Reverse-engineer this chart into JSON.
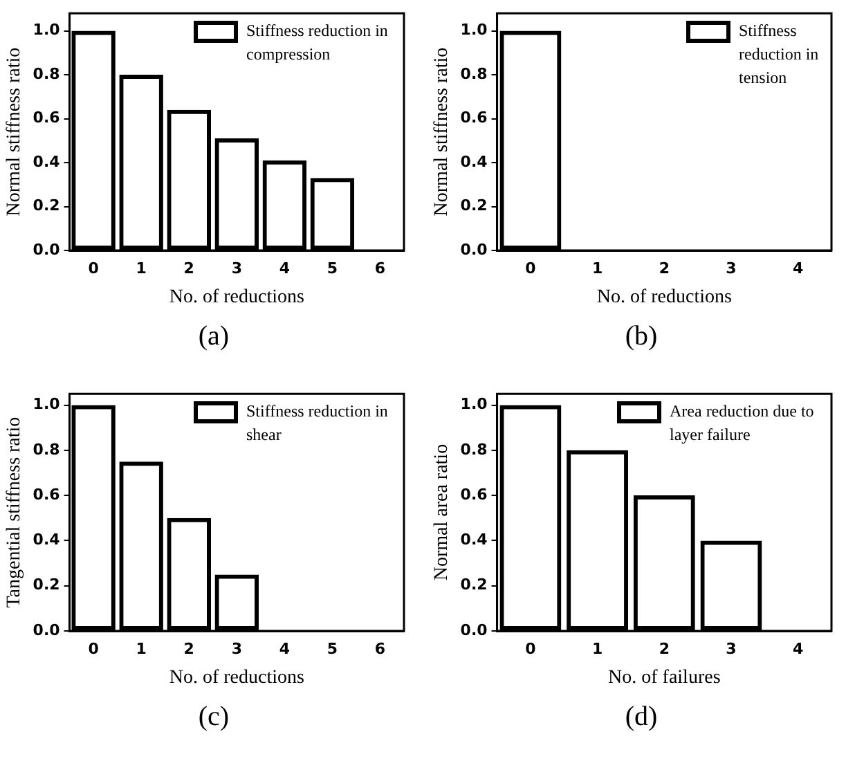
{
  "chart_data": [
    {
      "type": "bar",
      "categories": [
        "0",
        "1",
        "2",
        "3",
        "4",
        "5",
        "6"
      ],
      "series": [
        {
          "name": "Stiffness reduction in compression",
          "color": "#000000",
          "values": [
            1.0,
            0.8,
            0.64,
            0.51,
            0.41,
            0.33,
            0
          ]
        }
      ],
      "xlabel": "No. of reductions",
      "ylabel": "Normal stiffness ratio",
      "ylim": [
        0,
        1.08
      ],
      "yticks": [
        {
          "value": 0,
          "label": "0.0"
        },
        {
          "value": 0.2,
          "label": "0.2"
        },
        {
          "value": 0.4,
          "label": "0.4"
        },
        {
          "value": 0.6,
          "label": "0.6"
        },
        {
          "value": 0.8,
          "label": "0.8"
        },
        {
          "value": 1,
          "label": "1.0"
        }
      ],
      "grid": false,
      "legend": "top right",
      "annotations": [
        "(a)"
      ]
    },
    {
      "type": "bar",
      "categories": [
        "0",
        "1",
        "2",
        "3",
        "4"
      ],
      "series": [
        {
          "name": "Stiffness reduction in tension",
          "color": "#000000",
          "values": [
            1.0,
            0,
            0,
            0,
            0
          ]
        }
      ],
      "xlabel": "No. of reductions",
      "ylabel": "Normal stiffness ratio",
      "ylim": [
        0,
        1.08
      ],
      "yticks": [
        {
          "value": 0,
          "label": "0.0"
        },
        {
          "value": 0.2,
          "label": "0.2"
        },
        {
          "value": 0.4,
          "label": "0.4"
        },
        {
          "value": 0.6,
          "label": "0.6"
        },
        {
          "value": 0.8,
          "label": "0.8"
        },
        {
          "value": 1,
          "label": "1.0"
        }
      ],
      "grid": false,
      "legend": "top right",
      "annotations": [
        "(b)"
      ]
    },
    {
      "type": "bar",
      "categories": [
        "0",
        "1",
        "2",
        "3",
        "4",
        "5",
        "6"
      ],
      "series": [
        {
          "name": "Stiffness reduction in shear",
          "color": "#000000",
          "values": [
            1.0,
            0.75,
            0.5,
            0.25,
            0,
            0,
            0
          ]
        }
      ],
      "xlabel": "No. of reductions",
      "ylabel": "Tangential stiffness ratio",
      "ylim": [
        0,
        1.05
      ],
      "yticks": [
        {
          "value": 0,
          "label": "0.0"
        },
        {
          "value": 0.2,
          "label": "0.2"
        },
        {
          "value": 0.4,
          "label": "0.4"
        },
        {
          "value": 0.6,
          "label": "0.6"
        },
        {
          "value": 0.8,
          "label": "0.8"
        },
        {
          "value": 1,
          "label": "1.0"
        }
      ],
      "grid": false,
      "legend": "top right",
      "annotations": [
        "(c)"
      ]
    },
    {
      "type": "bar",
      "categories": [
        "0",
        "1",
        "2",
        "3",
        "4"
      ],
      "series": [
        {
          "name": "Area reduction due to layer failure",
          "color": "#000000",
          "values": [
            1.0,
            0.8,
            0.6,
            0.4,
            0
          ]
        }
      ],
      "xlabel": "No. of failures",
      "ylabel": "Normal area ratio",
      "ylim": [
        0,
        1.05
      ],
      "yticks": [
        {
          "value": 0,
          "label": "0.0"
        },
        {
          "value": 0.2,
          "label": "0.2"
        },
        {
          "value": 0.4,
          "label": "0.4"
        },
        {
          "value": 0.6,
          "label": "0.6"
        },
        {
          "value": 0.8,
          "label": "0.8"
        },
        {
          "value": 1,
          "label": "1.0"
        }
      ],
      "grid": false,
      "legend": "top right",
      "annotations": [
        "(d)"
      ]
    }
  ]
}
